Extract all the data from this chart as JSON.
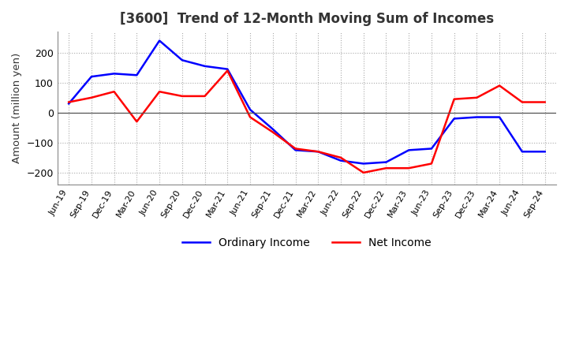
{
  "title": "[3600]  Trend of 12-Month Moving Sum of Incomes",
  "ylabel": "Amount (million yen)",
  "background_color": "#ffffff",
  "plot_background_color": "#ffffff",
  "grid_color": "#aaaaaa",
  "ylim": [
    -240,
    270
  ],
  "yticks": [
    -200,
    -100,
    0,
    100,
    200
  ],
  "x_labels": [
    "Jun-19",
    "Sep-19",
    "Dec-19",
    "Mar-20",
    "Jun-20",
    "Sep-20",
    "Dec-20",
    "Mar-21",
    "Jun-21",
    "Sep-21",
    "Dec-21",
    "Mar-22",
    "Jun-22",
    "Sep-22",
    "Dec-22",
    "Mar-23",
    "Jun-23",
    "Sep-23",
    "Dec-23",
    "Mar-24",
    "Jun-24",
    "Sep-24"
  ],
  "ordinary_income": [
    30,
    120,
    130,
    125,
    240,
    175,
    155,
    145,
    10,
    -55,
    -125,
    -130,
    -160,
    -170,
    -165,
    -125,
    -120,
    -20,
    -15,
    -15,
    -130,
    -130
  ],
  "net_income": [
    35,
    50,
    70,
    -30,
    70,
    55,
    55,
    140,
    -15,
    -65,
    -120,
    -130,
    -150,
    -200,
    -185,
    -185,
    -170,
    45,
    50,
    90,
    35,
    35
  ],
  "ordinary_income_color": "#0000ff",
  "net_income_color": "#ff0000",
  "line_width": 1.8,
  "legend_ordinary": "Ordinary Income",
  "legend_net": "Net Income",
  "title_color": "#333333"
}
